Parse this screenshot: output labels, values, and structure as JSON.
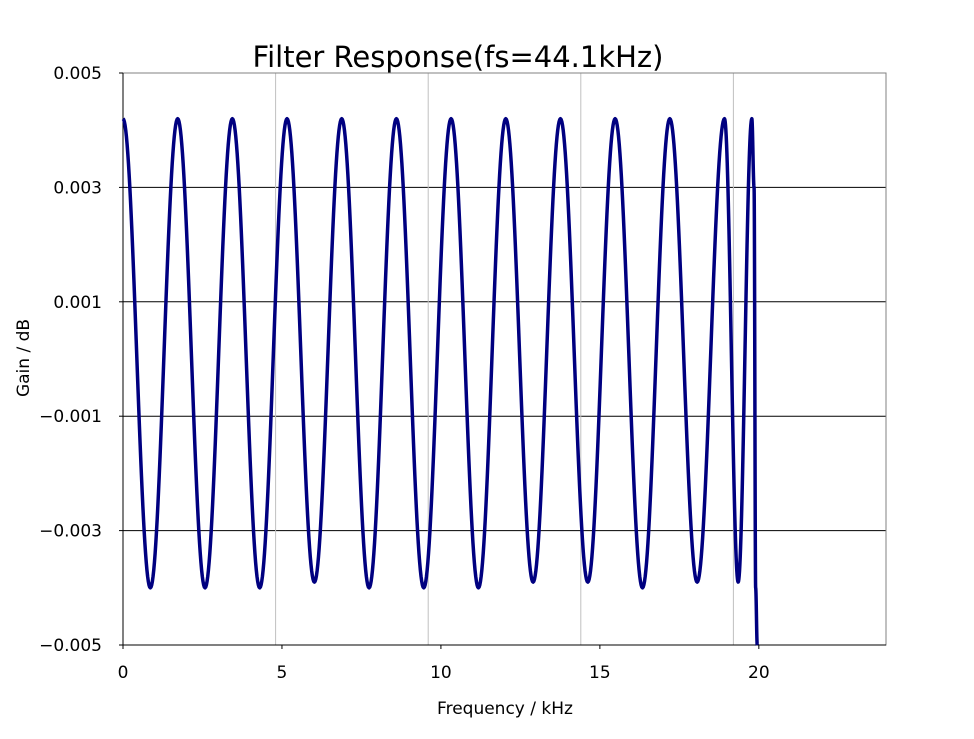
{
  "chart_data": {
    "type": "line",
    "title": "Filter Response(fs=44.1kHz)",
    "xlabel": "Frequency / kHz",
    "ylabel": "Gain / dB",
    "xlim": [
      0,
      24
    ],
    "ylim": [
      -0.005,
      0.005
    ],
    "x_ticks": [
      {
        "value": 0,
        "label": "0"
      },
      {
        "value": 5,
        "label": "5"
      },
      {
        "value": 10,
        "label": "10"
      },
      {
        "value": 15,
        "label": "15"
      },
      {
        "value": 20,
        "label": "20"
      }
    ],
    "y_ticks": [
      {
        "value": 0.005,
        "label": "0.005"
      },
      {
        "value": 0.003,
        "label": "0.003"
      },
      {
        "value": 0.001,
        "label": "0.001"
      },
      {
        "value": -0.001,
        "label": "-0.001"
      },
      {
        "value": -0.003,
        "label": "-0.003"
      },
      {
        "value": -0.005,
        "label": "-0.005"
      }
    ],
    "grid": {
      "horizontal": true,
      "vertical_minor": [
        4.8,
        9.6,
        14.4,
        19.2
      ]
    },
    "legend": "none",
    "series": [
      {
        "color": "#000080",
        "x": [
          0.0,
          0.86,
          1.72,
          2.58,
          3.44,
          4.3,
          5.16,
          6.02,
          6.88,
          7.74,
          8.6,
          9.46,
          10.32,
          11.18,
          12.04,
          12.9,
          13.76,
          14.62,
          15.48,
          16.34,
          17.2,
          18.06,
          18.92,
          19.35,
          19.78,
          19.85,
          19.9,
          19.95
        ],
        "y": [
          0.0042,
          -0.004,
          0.0042,
          -0.004,
          0.0042,
          -0.004,
          0.0042,
          -0.0039,
          0.0042,
          -0.004,
          0.0042,
          -0.004,
          0.0042,
          -0.004,
          0.0042,
          -0.0039,
          0.0042,
          -0.0039,
          0.0042,
          -0.004,
          0.0042,
          -0.0039,
          0.0042,
          -0.0039,
          0.0042,
          0.003,
          -0.004,
          -0.005
        ]
      }
    ]
  }
}
